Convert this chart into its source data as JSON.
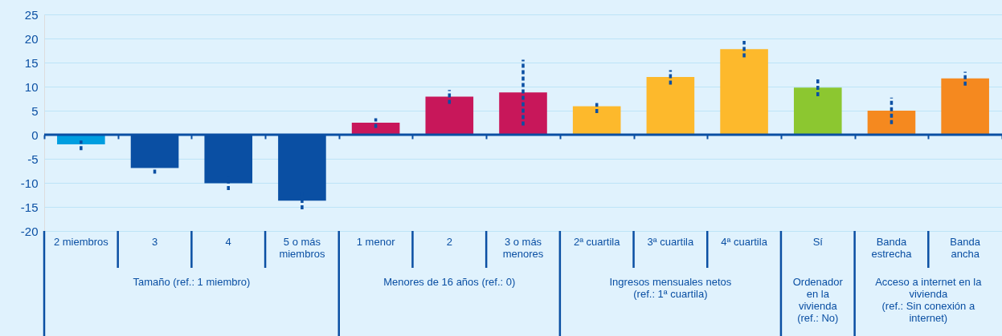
{
  "chart_data": {
    "type": "bar",
    "categories": [
      "2 miembros",
      "3",
      "4",
      "5 o más\nmiembros",
      "1 menor",
      "2",
      "3 o más\nmenores",
      "2ª cuartila",
      "3ª cuartila",
      "4ª cuartila",
      "Sí",
      "Banda\nestrecha",
      "Banda\nancha"
    ],
    "values": [
      -2.0,
      -6.9,
      -10.1,
      -13.7,
      2.5,
      7.9,
      8.8,
      5.9,
      12.0,
      17.8,
      9.8,
      5.0,
      11.7
    ],
    "colors": [
      "#009ee0",
      "#0a4fa3",
      "#0a4fa3",
      "#0a4fa3",
      "#c8175a",
      "#c8175a",
      "#c8175a",
      "#fdb92c",
      "#fdb92c",
      "#fdb92c",
      "#8cc730",
      "#f5891f",
      "#f5891f"
    ],
    "errors": [
      [
        -3.2,
        -1.2
      ],
      1.2,
      1.4,
      1.8,
      [
        1.4,
        3.4
      ],
      [
        6.4,
        9.3
      ],
      [
        1.9,
        15.6
      ],
      [
        4.5,
        6.6
      ],
      [
        10.4,
        13.4
      ],
      [
        16.1,
        19.5
      ],
      [
        8.0,
        11.6
      ],
      [
        2.2,
        7.7
      ],
      [
        10.2,
        13.1
      ]
    ],
    "ylim": [
      -20,
      25
    ],
    "yticks": [
      -20,
      -15,
      -10,
      -5,
      0,
      5,
      10,
      15,
      20,
      25
    ],
    "grid": "y",
    "ref_lines": [
      {
        "axis": "y",
        "value": 0,
        "color": "#0a4fa3"
      }
    ],
    "annotations": [
      "Tamaño (ref.: 1 miembro)",
      "Menores de 16 años (ref.: 0)",
      "Ingresos mensuales netos\n(ref.: 1ª cuartila)",
      "Ordenador\nen la\nvivienda\n(ref.: No)",
      "Acceso a internet en la\nvivienda\n(ref.: Sin conexión a\ninternet)"
    ]
  }
}
